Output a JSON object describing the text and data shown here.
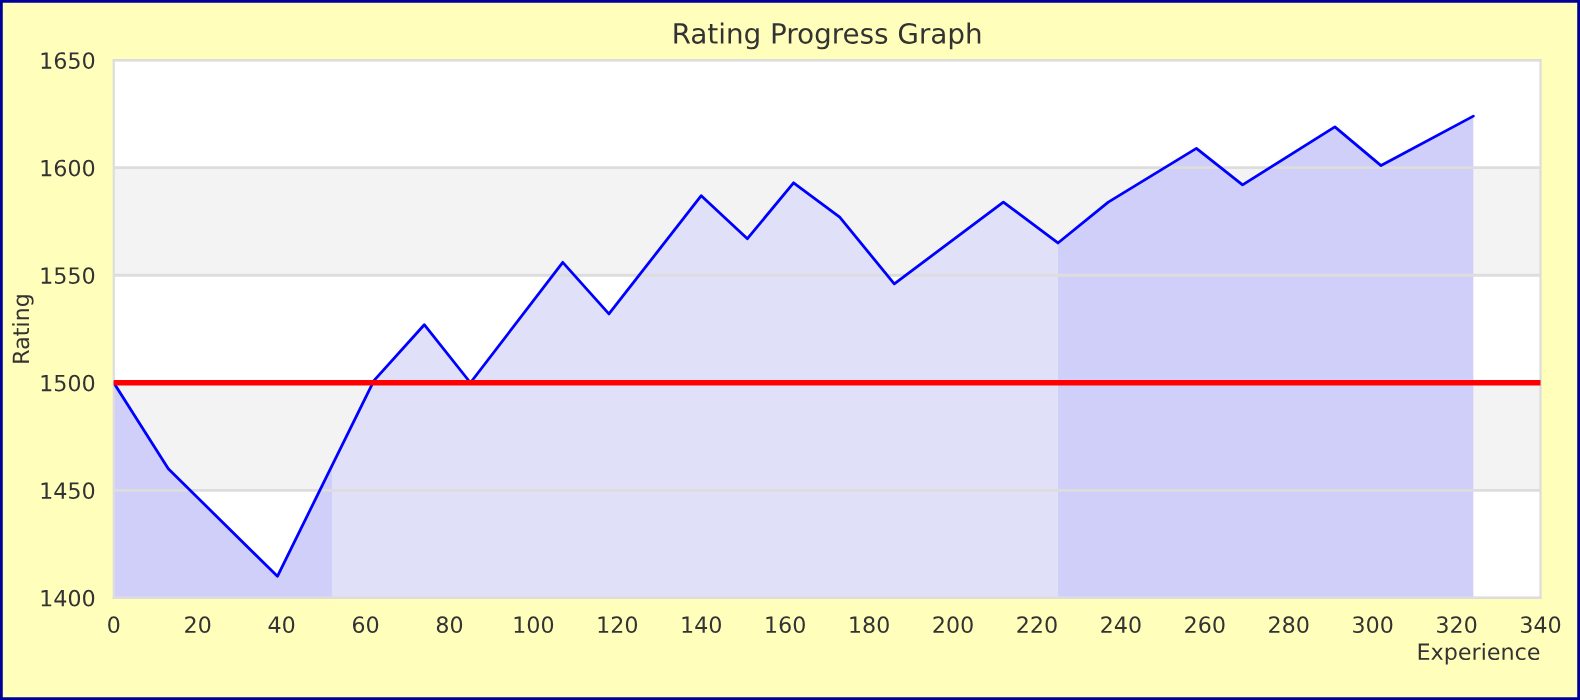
{
  "chart_data": {
    "type": "area",
    "title": "Rating Progress Graph",
    "xlabel": "Experience",
    "ylabel": "Rating",
    "xlim": [
      0,
      340
    ],
    "xticks": [
      0,
      20,
      40,
      60,
      80,
      100,
      120,
      140,
      160,
      180,
      200,
      220,
      240,
      260,
      280,
      300,
      320,
      340
    ],
    "ylim": [
      1400,
      1650
    ],
    "yticks": [
      1400,
      1450,
      1500,
      1550,
      1600,
      1650
    ],
    "grid": "y",
    "series": [
      {
        "color": "#cfcffa",
        "x": [
          0,
          13,
          39,
          52
        ],
        "values": [
          1500,
          1460,
          1410,
          1462
        ]
      },
      {
        "color": "#e0e0f8",
        "x": [
          52,
          62,
          74,
          85,
          107,
          118,
          140,
          151,
          162,
          173,
          186,
          212,
          225
        ],
        "values": [
          1462,
          1501,
          1527,
          1500,
          1556,
          1532,
          1587,
          1567,
          1593,
          1577,
          1546,
          1584,
          1565
        ]
      },
      {
        "color": "#cfcffa",
        "x": [
          225,
          237,
          258,
          269,
          291,
          302,
          324
        ],
        "values": [
          1565,
          1584,
          1609,
          1592,
          1619,
          1601,
          1624
        ]
      },
      {
        "type": "line",
        "color": "#0000ff",
        "x": [
          0,
          13,
          39,
          62,
          74,
          85,
          107,
          118,
          140,
          151,
          162,
          173,
          186,
          212,
          225,
          237,
          258,
          269,
          291,
          302,
          324
        ],
        "values": [
          1500,
          1460,
          1410,
          1501,
          1527,
          1500,
          1556,
          1532,
          1587,
          1567,
          1593,
          1577,
          1546,
          1584,
          1565,
          1584,
          1609,
          1592,
          1619,
          1601,
          1624
        ]
      }
    ],
    "bands": [
      {
        "axis": "y",
        "from": 1450,
        "to": 1500,
        "color": "#f3f3f3"
      },
      {
        "axis": "y",
        "from": 1550,
        "to": 1600,
        "color": "#f3f3f3"
      }
    ],
    "ref_lines": [
      {
        "axis": "y",
        "value": 1500,
        "color": "#ff0000"
      }
    ]
  }
}
